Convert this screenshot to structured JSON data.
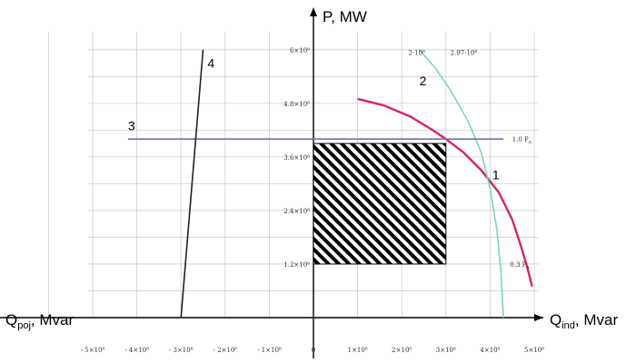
{
  "chart_data": {
    "type": "line",
    "axes": {
      "y_label": "P, MW",
      "x_right_label_main": "Q",
      "x_right_label_sub": "ind",
      "x_right_label_unit": ", Mvar",
      "x_left_label_main": "Q",
      "x_left_label_sub": "poj",
      "x_left_label_unit": ", Mvar",
      "xlim": [
        -5,
        5
      ],
      "ylim": [
        0,
        6
      ],
      "grid": true
    },
    "x_ticks": [
      {
        "v": -5,
        "label": "- 5×10⁸"
      },
      {
        "v": -4,
        "label": "- 4×10⁸"
      },
      {
        "v": -3,
        "label": "- 3×10⁸"
      },
      {
        "v": -2,
        "label": "- 2×10⁸"
      },
      {
        "v": -1,
        "label": "- 1×10⁸"
      },
      {
        "v": 0,
        "label": "0"
      },
      {
        "v": 1,
        "label": "1×10⁸"
      },
      {
        "v": 2,
        "label": "2×10⁸"
      },
      {
        "v": 3,
        "label": "3×10⁸"
      },
      {
        "v": 4,
        "label": "4×10⁸"
      },
      {
        "v": 5,
        "label": "5×10⁸"
      }
    ],
    "y_ticks": [
      {
        "v": 1.2,
        "label": "1.2×10⁸"
      },
      {
        "v": 2.4,
        "label": "2.4×10⁸"
      },
      {
        "v": 3.6,
        "label": "3.6×10⁸"
      },
      {
        "v": 4.8,
        "label": "4.8×10⁸"
      },
      {
        "v": 6.0,
        "label": "6×10⁸"
      }
    ],
    "series": [
      {
        "name": "1",
        "color": "#d6246e",
        "points": [
          [
            1.0,
            4.9
          ],
          [
            1.6,
            4.75
          ],
          [
            2.2,
            4.5
          ],
          [
            2.7,
            4.2
          ],
          [
            3.0,
            4.0
          ],
          [
            3.4,
            3.7
          ],
          [
            3.8,
            3.3
          ],
          [
            4.2,
            2.8
          ],
          [
            4.5,
            2.2
          ],
          [
            4.7,
            1.6
          ],
          [
            4.85,
            1.1
          ],
          [
            4.95,
            0.7
          ]
        ]
      },
      {
        "name": "2",
        "color": "#7cd6b9",
        "points": [
          [
            2.4,
            6.0
          ],
          [
            2.75,
            5.6
          ],
          [
            3.1,
            5.1
          ],
          [
            3.5,
            4.4
          ],
          [
            3.8,
            3.7
          ],
          [
            4.0,
            2.9
          ],
          [
            4.15,
            2.0
          ],
          [
            4.25,
            1.0
          ],
          [
            4.3,
            0.0
          ]
        ]
      },
      {
        "name": "3",
        "color": "#7070b0",
        "points": [
          [
            -4.2,
            4.0
          ],
          [
            4.3,
            4.0
          ]
        ]
      },
      {
        "name": "4",
        "color": "#222222",
        "points": [
          [
            -2.5,
            6.0
          ],
          [
            -3.0,
            0.0
          ]
        ]
      }
    ],
    "shaded_region": {
      "x": [
        0,
        3
      ],
      "y": [
        1.2,
        3.9
      ],
      "pattern": "diagonal-hatch"
    },
    "annotations": [
      {
        "text": "2·10⁸",
        "x": 2.15,
        "y": 5.95
      },
      {
        "text": "2.97·10⁸",
        "x": 3.1,
        "y": 5.95
      },
      {
        "text": "1.0 P",
        "sub": "n",
        "x": 4.5,
        "y": 4.0
      },
      {
        "text": "0.3 P",
        "sub": "n",
        "x": 4.45,
        "y": 1.2
      }
    ],
    "curve_labels": [
      {
        "text": "1",
        "x": 4.05,
        "y": 3.1
      },
      {
        "text": "2",
        "x": 2.4,
        "y": 5.2
      },
      {
        "text": "3",
        "x": -4.2,
        "y": 4.2
      },
      {
        "text": "4",
        "x": -2.4,
        "y": 5.6
      }
    ]
  }
}
